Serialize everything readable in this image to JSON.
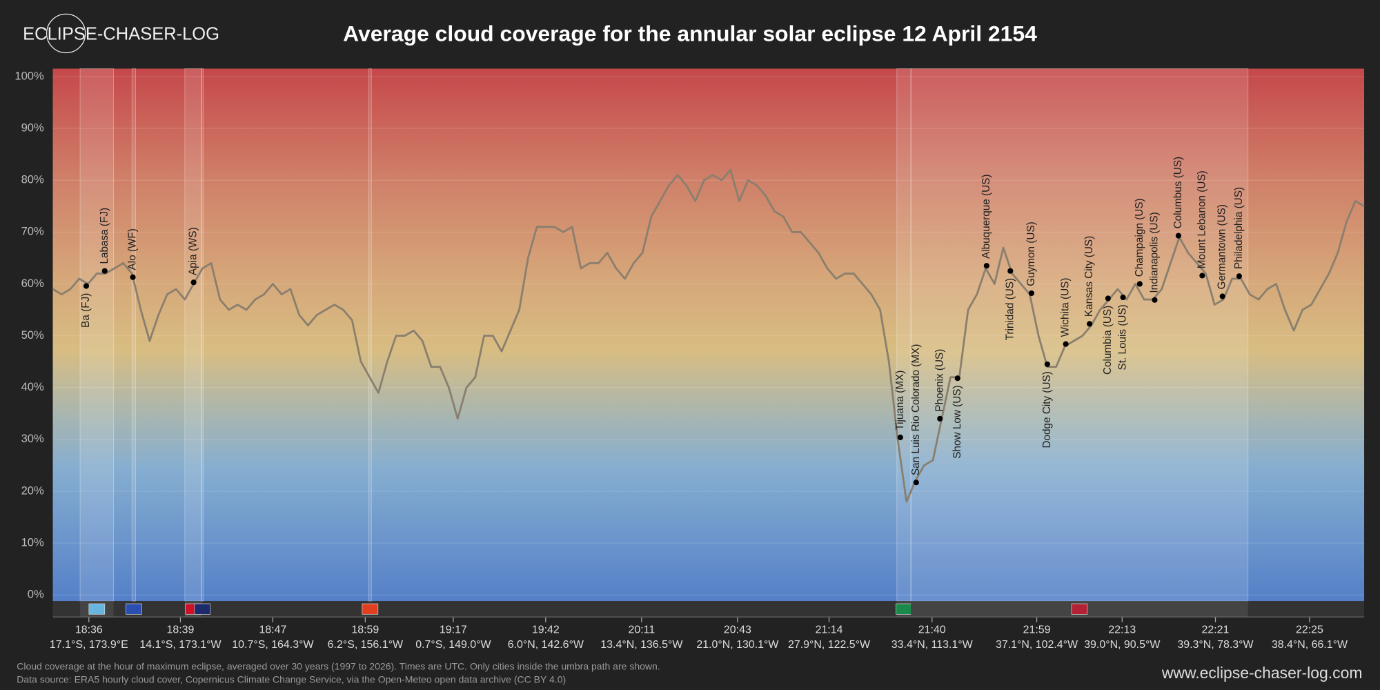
{
  "header": {
    "logo": "ECLIPSE-CHASER-LOG",
    "url": "www.eclipse-chaser-log.com"
  },
  "footnotes": [
    "Cloud coverage at the hour of maximum eclipse, averaged over 30 years (1997 to 2026). Times are UTC. Only cities inside the umbra path are shown.",
    "Data source: ERA5 hourly cloud cover, Copernicus Climate Change Service, via the Open-Meteo open data archive (CC BY 4.0)"
  ],
  "chart_data": {
    "type": "line",
    "title": "Average cloud coverage for the annular solar eclipse 12 April 2154",
    "color": "#8a7f6e",
    "grid": true,
    "xlim": [
      0,
      149
    ],
    "ylim": [
      0,
      100
    ],
    "yticks": [
      {
        "value": 0,
        "label": "0%"
      },
      {
        "value": 10,
        "label": "10%"
      },
      {
        "value": 20,
        "label": "20%"
      },
      {
        "value": 30,
        "label": "30%"
      },
      {
        "value": 40,
        "label": "40%"
      },
      {
        "value": 50,
        "label": "50%"
      },
      {
        "value": 60,
        "label": "60%"
      },
      {
        "value": 70,
        "label": "70%"
      },
      {
        "value": 80,
        "label": "80%"
      },
      {
        "value": 90,
        "label": "90%"
      },
      {
        "value": 100,
        "label": "100%"
      }
    ],
    "xticks": [
      {
        "value": 4.1,
        "label": "18:36",
        "sublabel": "17.1°S, 173.9°E"
      },
      {
        "value": 14.5,
        "label": "18:39",
        "sublabel": "14.1°S, 173.1°W"
      },
      {
        "value": 25,
        "label": "18:47",
        "sublabel": "10.7°S, 164.3°W"
      },
      {
        "value": 35.5,
        "label": "18:59",
        "sublabel": "6.2°S, 156.1°W"
      },
      {
        "value": 45.5,
        "label": "19:17",
        "sublabel": "0.7°S, 149.0°W"
      },
      {
        "value": 56,
        "label": "19:42",
        "sublabel": "6.0°N, 142.6°W"
      },
      {
        "value": 66.9,
        "label": "20:11",
        "sublabel": "13.4°N, 136.5°W"
      },
      {
        "value": 77.8,
        "label": "20:43",
        "sublabel": "21.0°N, 130.1°W"
      },
      {
        "value": 88.2,
        "label": "21:14",
        "sublabel": "27.9°N, 122.5°W"
      },
      {
        "value": 99.9,
        "label": "21:40",
        "sublabel": "33.4°N, 113.1°W"
      },
      {
        "value": 111.8,
        "label": "21:59",
        "sublabel": "37.1°N, 102.4°W"
      },
      {
        "value": 121.5,
        "label": "22:13",
        "sublabel": "39.0°N, 90.5°W"
      },
      {
        "value": 132.1,
        "label": "22:21",
        "sublabel": "39.3°N, 78.3°W"
      },
      {
        "value": 142.8,
        "label": "22:25",
        "sublabel": "38.4°N, 66.1°W"
      }
    ],
    "x": [
      0,
      1,
      2,
      3,
      4,
      5,
      6,
      7,
      8,
      9,
      10,
      11,
      12,
      13,
      14,
      15,
      16,
      17,
      18,
      19,
      20,
      21,
      22,
      23,
      24,
      25,
      26,
      27,
      28,
      29,
      30,
      31,
      32,
      33,
      34,
      35,
      36,
      37,
      38,
      39,
      40,
      41,
      42,
      43,
      44,
      45,
      46,
      47,
      48,
      49,
      50,
      51,
      52,
      53,
      54,
      55,
      56,
      57,
      58,
      59,
      60,
      61,
      62,
      63,
      64,
      65,
      66,
      67,
      68,
      69,
      70,
      71,
      72,
      73,
      74,
      75,
      76,
      77,
      78,
      79,
      80,
      81,
      82,
      83,
      84,
      85,
      86,
      87,
      88,
      89,
      90,
      91,
      92,
      93,
      94,
      95,
      96,
      97,
      98,
      99,
      100,
      101,
      102,
      103,
      104,
      105,
      106,
      107,
      108,
      109,
      110,
      111,
      112,
      113,
      114,
      115,
      116,
      117,
      118,
      119,
      120,
      121,
      122,
      123,
      124,
      125,
      126,
      127,
      128,
      129,
      130,
      131,
      132,
      133,
      134,
      135,
      136,
      137,
      138,
      139,
      140,
      141,
      142,
      143,
      144,
      145,
      146,
      147,
      148,
      149
    ],
    "values": [
      59,
      58,
      59,
      61,
      60,
      62,
      62,
      63,
      64,
      62,
      55,
      49,
      54,
      58,
      59,
      57,
      60,
      63,
      64,
      57,
      55,
      56,
      55,
      57,
      58,
      60,
      58,
      59,
      54,
      52,
      54,
      55,
      56,
      55,
      53,
      45,
      42,
      39,
      45,
      50,
      50,
      51,
      49,
      44,
      44,
      40,
      34,
      40,
      42,
      50,
      50,
      47,
      51,
      55,
      65,
      71,
      71,
      71,
      70,
      71,
      63,
      64,
      64,
      66,
      63,
      61,
      64,
      66,
      73,
      76,
      79,
      81,
      79,
      76,
      80,
      81,
      80,
      82,
      76,
      80,
      79,
      77,
      74,
      73,
      70,
      70,
      68,
      66,
      63,
      61,
      62,
      62,
      60,
      58,
      55,
      45,
      30,
      18,
      22,
      25,
      26,
      34,
      42,
      42,
      55,
      58,
      63,
      60,
      67,
      62,
      60,
      58,
      50,
      44,
      44,
      48,
      49,
      50,
      52,
      55,
      57,
      59,
      57,
      60,
      57,
      57,
      59,
      64,
      69,
      66,
      64,
      62,
      56,
      57,
      61,
      61,
      58,
      57,
      59,
      60,
      55,
      51,
      55,
      56,
      59,
      62,
      66,
      72,
      76,
      75
    ],
    "regions": [
      {
        "start": 3.1,
        "end": 6.9,
        "color": "#68b5e0"
      },
      {
        "start": 9,
        "end": 9.4,
        "color": "#2a4fb0"
      },
      {
        "start": 15,
        "end": 16.9,
        "color": "#ce1126"
      },
      {
        "start": 16.9,
        "end": 17.1,
        "color": "#1c2a6c"
      },
      {
        "start": 35.9,
        "end": 36.2,
        "color": "#e04020"
      },
      {
        "start": 95.9,
        "end": 97.5,
        "color": "#1a8a4a"
      },
      {
        "start": 97.5,
        "end": 135.8,
        "color": "#b22234"
      }
    ],
    "cities": [
      {
        "label": "Ba (FJ)",
        "x": 3.8,
        "value": 59.6,
        "position": "below"
      },
      {
        "label": "Labasa (FJ)",
        "x": 5.9,
        "value": 62.5,
        "position": "above"
      },
      {
        "label": "Alo (WF)",
        "x": 9.1,
        "value": 61.3,
        "position": "above"
      },
      {
        "label": "Apia (WS)",
        "x": 16,
        "value": 60.3,
        "position": "above"
      },
      {
        "label": "Tijuana (MX)",
        "x": 96.3,
        "value": 30.4,
        "position": "above"
      },
      {
        "label": "San Luis Rio Colorado (MX)",
        "x": 98.1,
        "value": 21.7,
        "position": "above"
      },
      {
        "label": "Phoenix (US)",
        "x": 100.8,
        "value": 34,
        "position": "above"
      },
      {
        "label": "Show Low (US)",
        "x": 102.8,
        "value": 41.8,
        "position": "below"
      },
      {
        "label": "Albuquerque (US)",
        "x": 106.1,
        "value": 63.5,
        "position": "above"
      },
      {
        "label": "Trinidad (US)",
        "x": 108.8,
        "value": 62.5,
        "position": "below"
      },
      {
        "label": "Guymon (US)",
        "x": 111.2,
        "value": 58.2,
        "position": "above"
      },
      {
        "label": "Dodge City (US)",
        "x": 113,
        "value": 44.5,
        "position": "below"
      },
      {
        "label": "Wichita (US)",
        "x": 115.1,
        "value": 48.4,
        "position": "above"
      },
      {
        "label": "Kansas City (US)",
        "x": 117.8,
        "value": 52.3,
        "position": "above"
      },
      {
        "label": "Columbia (US)",
        "x": 119.9,
        "value": 57.2,
        "position": "below"
      },
      {
        "label": "St. Louis (US)",
        "x": 121.6,
        "value": 57.4,
        "position": "below"
      },
      {
        "label": "Champaign (US)",
        "x": 123.5,
        "value": 60,
        "position": "above"
      },
      {
        "label": "Indianapolis (US)",
        "x": 125.2,
        "value": 56.9,
        "position": "above"
      },
      {
        "label": "Columbus (US)",
        "x": 127.9,
        "value": 69.3,
        "position": "above"
      },
      {
        "label": "Mount Lebanon (US)",
        "x": 130.6,
        "value": 61.6,
        "position": "above"
      },
      {
        "label": "Germantown (US)",
        "x": 132.9,
        "value": 57.6,
        "position": "above"
      },
      {
        "label": "Philadelphia (US)",
        "x": 134.8,
        "value": 61.5,
        "position": "above"
      }
    ]
  }
}
